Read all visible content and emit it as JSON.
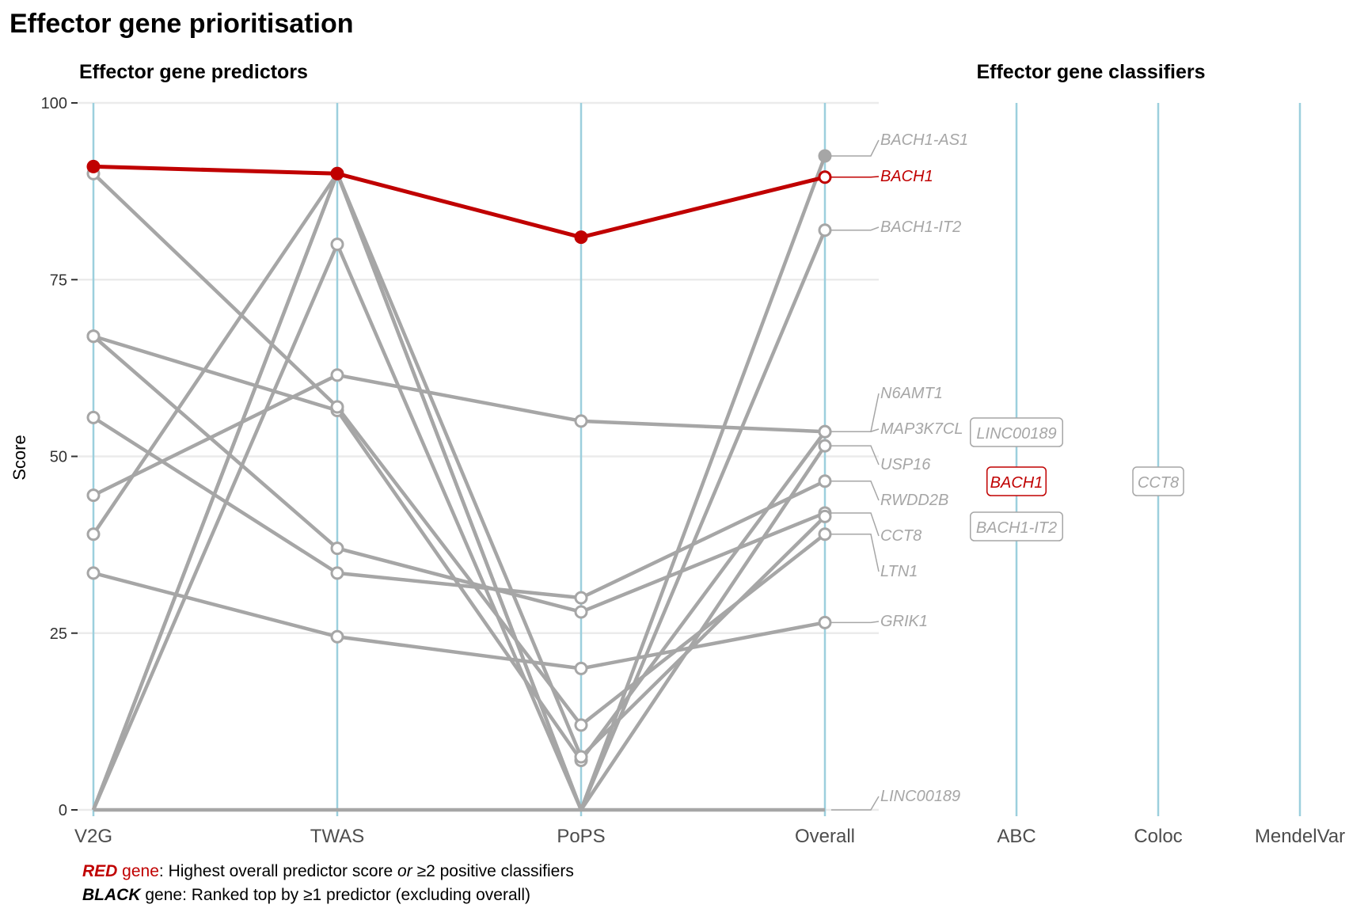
{
  "chart_data": {
    "type": "line",
    "title": "Effector gene prioritisation",
    "panel_titles": {
      "predictors": "Effector gene predictors",
      "classifiers": "Effector gene classifiers"
    },
    "ylabel": "Score",
    "ylim": [
      0,
      100
    ],
    "yticks": [
      0,
      25,
      50,
      75,
      100
    ],
    "predictor_axes": [
      "V2G",
      "TWAS",
      "PoPS",
      "Overall"
    ],
    "classifier_axes": [
      "ABC",
      "Coloc",
      "MendelVar"
    ],
    "grid": true,
    "colors": {
      "highlight": "#c00000",
      "other": "#a6a6a6",
      "axis_line": "#9ccfdd",
      "grid": "#ebebeb"
    },
    "series": [
      {
        "name": "BACH1",
        "values": [
          91,
          90,
          81,
          89.5
        ],
        "highlight": true
      },
      {
        "name": "BACH1-AS1",
        "values": [
          0,
          90,
          0,
          92.5
        ],
        "filled_overall": true
      },
      {
        "name": "BACH1-IT2",
        "values": [
          0,
          80,
          0,
          82
        ]
      },
      {
        "name": "N6AMT1",
        "values": [
          67,
          56.5,
          7,
          53.5
        ]
      },
      {
        "name": "MAP3K7CL",
        "values": [
          44.5,
          61.5,
          55,
          53.5
        ]
      },
      {
        "name": "USP16",
        "values": [
          39,
          90,
          0,
          51.5
        ]
      },
      {
        "name": "RWDD2B",
        "values": [
          55.5,
          33.5,
          30,
          46.5
        ]
      },
      {
        "name": "CCT8",
        "values": [
          67,
          37,
          28,
          42
        ]
      },
      {
        "name": "LTN1",
        "values": [
          90,
          57,
          12,
          39
        ]
      },
      {
        "name": "GRIK1",
        "values": [
          33.5,
          24.5,
          20,
          26.5
        ]
      },
      {
        "name": "LINC00189",
        "values": [
          0,
          0,
          0,
          0
        ]
      },
      {
        "name": "",
        "values": [
          0,
          90,
          7.5,
          41.5
        ]
      }
    ],
    "gene_labels": [
      "BACH1-AS1",
      "BACH1",
      "BACH1-IT2",
      "N6AMT1",
      "MAP3K7CL",
      "USP16",
      "RWDD2B",
      "CCT8",
      "LTN1",
      "GRIK1",
      "LINC00189"
    ],
    "classifier_labels": [
      {
        "axis": "ABC",
        "gene": "LINC00189",
        "highlight": false
      },
      {
        "axis": "ABC",
        "gene": "BACH1",
        "highlight": true
      },
      {
        "axis": "ABC",
        "gene": "BACH1-IT2",
        "highlight": false
      },
      {
        "axis": "Coloc",
        "gene": "CCT8",
        "highlight": false
      }
    ],
    "legend_notes": [
      {
        "keyword": "RED",
        "keyword_rest": " gene",
        "text": ": Highest overall predictor score ",
        "emphasis": "or",
        "text2": " ≥2 positive classifiers",
        "color": "#c00000"
      },
      {
        "keyword": "BLACK",
        "keyword_rest": " gene",
        "text": ": Ranked top by ≥1 predictor (excluding overall)",
        "emphasis": "",
        "text2": "",
        "color": "#000000"
      }
    ]
  }
}
